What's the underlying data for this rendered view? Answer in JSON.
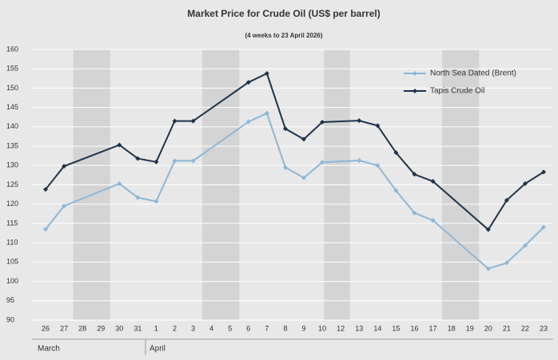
{
  "chart_data": {
    "type": "line",
    "title": "Market Price for Crude Oil (US$ per barrel)",
    "subtitle": "(4 weeks to 23 April 2026)",
    "categories": [
      "26",
      "27",
      "28",
      "29",
      "30",
      "31",
      "1",
      "2",
      "3",
      "4",
      "5",
      "6",
      "7",
      "8",
      "9",
      "10",
      "12",
      "13",
      "14",
      "15",
      "16",
      "17",
      "18",
      "19",
      "20",
      "21",
      "22",
      "23"
    ],
    "months": [
      "March",
      "April"
    ],
    "series": [
      {
        "name": "North Sea Dated (Brent)",
        "color": "#8db7d6",
        "values": [
          113.5,
          119.5,
          null,
          null,
          125.3,
          121.7,
          120.7,
          131.2,
          131.2,
          null,
          null,
          141.3,
          143.5,
          129.5,
          126.8,
          130.8,
          null,
          131.3,
          130.0,
          123.5,
          117.7,
          115.8,
          null,
          null,
          103.3,
          104.8,
          109.3,
          114.0
        ]
      },
      {
        "name": "Tapis Crude Oil",
        "color": "#1f3349",
        "values": [
          123.8,
          129.8,
          null,
          null,
          135.3,
          131.8,
          130.9,
          141.5,
          141.5,
          null,
          null,
          151.5,
          153.8,
          139.5,
          136.8,
          141.2,
          null,
          141.6,
          140.3,
          133.3,
          127.7,
          125.9,
          null,
          null,
          113.4,
          121.0,
          125.3,
          128.3
        ]
      }
    ],
    "ylim": [
      90,
      160
    ],
    "yticks": [
      90,
      95,
      100,
      105,
      110,
      115,
      120,
      125,
      130,
      135,
      140,
      145,
      150,
      155,
      160
    ],
    "grid": true,
    "legend": "upper right"
  }
}
